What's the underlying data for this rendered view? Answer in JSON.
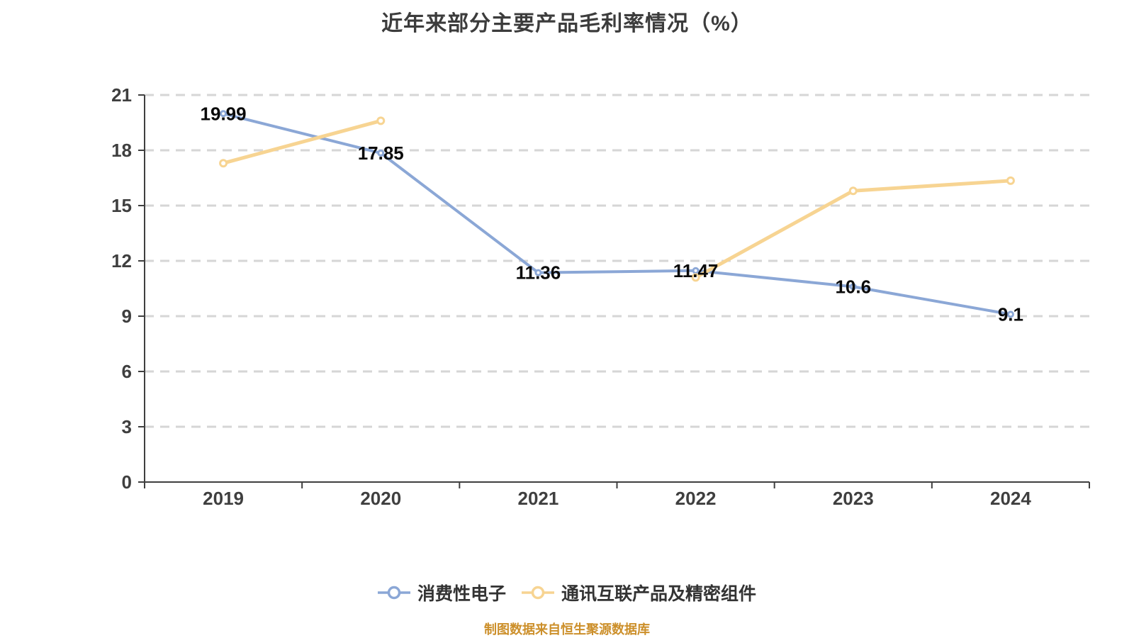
{
  "footer": {
    "text": "制图数据来自恒生聚源数据库"
  },
  "chart_data": {
    "type": "line",
    "title": "近年来部分主要产品毛利率情况（%）",
    "categories": [
      "2019",
      "2020",
      "2021",
      "2022",
      "2023",
      "2024"
    ],
    "series": [
      {
        "name": "消费性电子",
        "color": "#8BA7D6",
        "values": [
          19.99,
          17.85,
          11.36,
          11.47,
          10.6,
          9.1
        ],
        "labels": [
          "19.99",
          "17.85",
          "11.36",
          "11.47",
          "10.6",
          "9.1"
        ],
        "show_labels": true,
        "marker": "hollow-circle"
      },
      {
        "name": "通讯互联产品及精密组件",
        "color": "#F7D492",
        "values": [
          17.3,
          19.6,
          null,
          11.1,
          15.8,
          16.35
        ],
        "labels": [
          "17.3",
          "19.6",
          "",
          "11.1",
          "15.8",
          "16.35"
        ],
        "show_labels": false,
        "marker": "hollow-circle"
      }
    ],
    "ylim": [
      0,
      21
    ],
    "yticks": [
      0,
      3,
      6,
      9,
      12,
      15,
      18,
      21
    ],
    "grid": "horizontal-dashed",
    "legend_position": "bottom",
    "background": "#ffffff"
  }
}
